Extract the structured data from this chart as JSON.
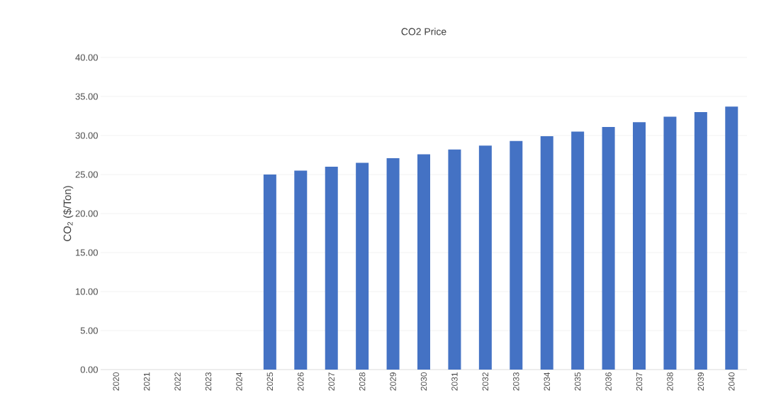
{
  "chart_data": {
    "type": "bar",
    "title": "CO2 Price",
    "ylabel": "CO$_{2}$ ($/Ton)",
    "categories": [
      "2020",
      "2021",
      "2022",
      "2023",
      "2024",
      "2025",
      "2026",
      "2027",
      "2028",
      "2029",
      "2030",
      "2031",
      "2032",
      "2033",
      "2034",
      "2035",
      "2036",
      "2037",
      "2038",
      "2039",
      "2040"
    ],
    "values": [
      null,
      null,
      null,
      null,
      null,
      25.0,
      25.5,
      26.0,
      26.5,
      27.1,
      27.6,
      28.2,
      28.7,
      29.3,
      29.9,
      30.5,
      31.1,
      31.7,
      32.4,
      33.0,
      33.7
    ],
    "color": "#4472c4",
    "ylim": [
      0,
      40
    ],
    "yticks": [
      {
        "value": 0,
        "label": "0.00"
      },
      {
        "value": 5,
        "label": "5.00"
      },
      {
        "value": 10,
        "label": "10.00"
      },
      {
        "value": 15,
        "label": "15.00"
      },
      {
        "value": 20,
        "label": "20.00"
      },
      {
        "value": 25,
        "label": "25.00"
      },
      {
        "value": 30,
        "label": "30.00"
      },
      {
        "value": 35,
        "label": "35.00"
      },
      {
        "value": 40,
        "label": "40.00"
      }
    ],
    "grid": "y"
  }
}
